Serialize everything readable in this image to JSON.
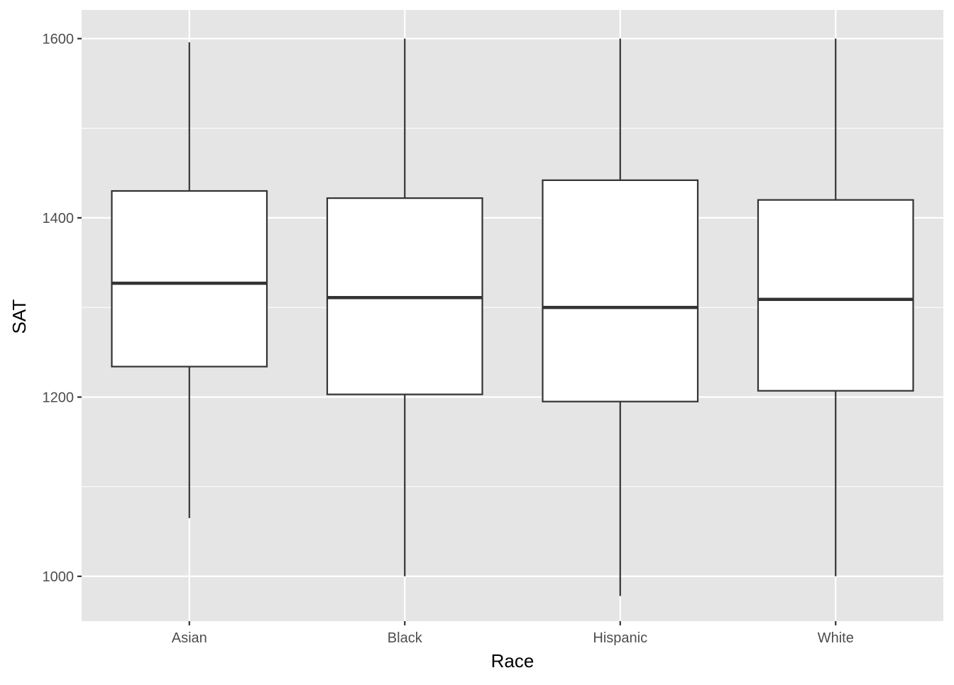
{
  "chart_data": {
    "type": "boxplot",
    "title": "",
    "xlabel": "Race",
    "ylabel": "SAT",
    "categories": [
      "Asian",
      "Black",
      "Hispanic",
      "White"
    ],
    "boxes": [
      {
        "category": "Asian",
        "whisker_low": 1065,
        "q1": 1234,
        "median": 1327,
        "q3": 1430,
        "whisker_high": 1596
      },
      {
        "category": "Black",
        "whisker_low": 1000,
        "q1": 1203,
        "median": 1311,
        "q3": 1422,
        "whisker_high": 1600
      },
      {
        "category": "Hispanic",
        "whisker_low": 978,
        "q1": 1195,
        "median": 1300,
        "q3": 1442,
        "whisker_high": 1600
      },
      {
        "category": "White",
        "whisker_low": 1000,
        "q1": 1207,
        "median": 1309,
        "q3": 1420,
        "whisker_high": 1600
      }
    ],
    "ylim": [
      950,
      1632
    ],
    "yticks": [
      1000,
      1200,
      1400,
      1600
    ],
    "ytick_labels": [
      "1000",
      "1200",
      "1400",
      "1600"
    ],
    "grid": true,
    "colors": {
      "panel_background": "#e5e5e5",
      "grid": "#ffffff",
      "box_fill": "#ffffff",
      "box_stroke": "#333333",
      "tick_text": "#4d4d4d",
      "title_text": "#000000"
    }
  }
}
